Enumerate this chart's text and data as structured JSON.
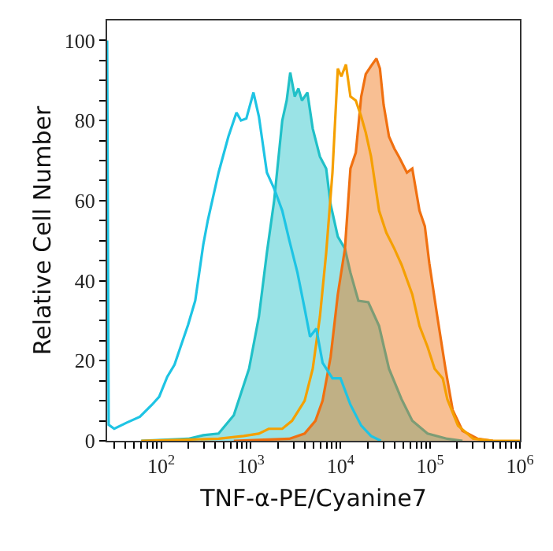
{
  "chart_data": {
    "type": "line",
    "xlabel": "TNF-α-PE/Cyanine7",
    "ylabel": "Relative Cell Number",
    "log": "x",
    "marker": "none",
    "line_style": "solid",
    "xlim": [
      25,
      1000000
    ],
    "ylim": [
      0,
      105
    ],
    "xticks": [
      {
        "value": 30,
        "label": null
      },
      {
        "value": 40,
        "label": null
      },
      {
        "value": 50,
        "label": null
      },
      {
        "value": 60,
        "label": null
      },
      {
        "value": 70,
        "label": null
      },
      {
        "value": 80,
        "label": null
      },
      {
        "value": 90,
        "label": null
      },
      {
        "value": 100,
        "label": "10$^{2}$"
      },
      {
        "value": 200,
        "label": null
      },
      {
        "value": 300,
        "label": null
      },
      {
        "value": 400,
        "label": null
      },
      {
        "value": 500,
        "label": null
      },
      {
        "value": 600,
        "label": null
      },
      {
        "value": 700,
        "label": null
      },
      {
        "value": 800,
        "label": null
      },
      {
        "value": 900,
        "label": null
      },
      {
        "value": 1000,
        "label": "10$^{3}$"
      },
      {
        "value": 2000,
        "label": null
      },
      {
        "value": 3000,
        "label": null
      },
      {
        "value": 4000,
        "label": null
      },
      {
        "value": 5000,
        "label": null
      },
      {
        "value": 6000,
        "label": null
      },
      {
        "value": 7000,
        "label": null
      },
      {
        "value": 8000,
        "label": null
      },
      {
        "value": 9000,
        "label": null
      },
      {
        "value": 10000,
        "label": "10$^{4}$"
      },
      {
        "value": 20000,
        "label": null
      },
      {
        "value": 30000,
        "label": null
      },
      {
        "value": 40000,
        "label": null
      },
      {
        "value": 50000,
        "label": null
      },
      {
        "value": 60000,
        "label": null
      },
      {
        "value": 70000,
        "label": null
      },
      {
        "value": 80000,
        "label": null
      },
      {
        "value": 90000,
        "label": null
      },
      {
        "value": 100000,
        "label": "10$^{5}$"
      },
      {
        "value": 200000,
        "label": null
      },
      {
        "value": 300000,
        "label": null
      },
      {
        "value": 400000,
        "label": null
      },
      {
        "value": 500000,
        "label": null
      },
      {
        "value": 600000,
        "label": null
      },
      {
        "value": 700000,
        "label": null
      },
      {
        "value": 800000,
        "label": null
      },
      {
        "value": 900000,
        "label": null
      },
      {
        "value": 1000000,
        "label": "10$^{6}$"
      }
    ],
    "yticks": [
      0,
      {
        "value": 5,
        "label": null
      },
      {
        "value": 10,
        "label": null
      },
      {
        "value": 15,
        "label": null
      },
      20,
      {
        "value": 25,
        "label": null
      },
      {
        "value": 30,
        "label": null
      },
      {
        "value": 35,
        "label": null
      },
      40,
      {
        "value": 45,
        "label": null
      },
      {
        "value": 50,
        "label": null
      },
      {
        "value": 55,
        "label": null
      },
      60,
      {
        "value": 65,
        "label": null
      },
      {
        "value": 70,
        "label": null
      },
      {
        "value": 75,
        "label": null
      },
      80,
      {
        "value": 85,
        "label": null
      },
      {
        "value": 90,
        "label": null
      },
      {
        "value": 95,
        "label": null
      },
      100
    ],
    "series": [
      {
        "color": "#1ec4e4",
        "x": [
          25,
          26,
          30,
          41,
          58,
          79,
          95,
          117,
          141,
          162,
          200,
          240,
          295,
          331,
          437,
          562,
          692,
          776,
          891,
          1070,
          1230,
          1510,
          1820,
          2240,
          2690,
          3310,
          3980,
          4570,
          5370,
          6310,
          8130,
          10000,
          12900,
          17000,
          21900,
          28200
        ],
        "values": [
          100,
          4,
          3,
          4.5,
          6,
          9,
          11,
          16,
          19,
          23,
          29,
          35,
          49,
          55,
          67,
          76,
          82,
          80,
          80.5,
          87,
          81,
          67,
          63,
          57.5,
          50,
          42,
          33,
          26,
          28,
          19.5,
          15.6,
          15.6,
          9,
          3.8,
          1.2,
          0
        ]
      },
      {
        "type": "area",
        "color": "#20c0c8",
        "x": [
          60,
          200,
          295,
          437,
          646,
          955,
          1230,
          1510,
          1820,
          2240,
          2510,
          2750,
          3090,
          3390,
          3720,
          4270,
          4900,
          5890,
          6920,
          7760,
          9330,
          11200,
          12900,
          15800,
          20400,
          26900,
          34700,
          47900,
          63100,
          93300,
          155000,
          229000
        ],
        "values": [
          0,
          0.5,
          1.4,
          1.8,
          6.4,
          18,
          31,
          47,
          60,
          80,
          85,
          92,
          86,
          88,
          85,
          87,
          78,
          71,
          68,
          59,
          51,
          48,
          42,
          35,
          34.6,
          28.7,
          18,
          10.4,
          5,
          1.8,
          0.5,
          0
        ]
      },
      {
        "color": "#f5a000",
        "x": [
          60,
          437,
          832,
          1230,
          1580,
          2240,
          2880,
          3980,
          4900,
          5890,
          6920,
          8130,
          9330,
          10200,
          11500,
          12900,
          14800,
          17000,
          19100,
          21900,
          26900,
          32400,
          39800,
          47900,
          63100,
          75900,
          93300,
          112000,
          138000,
          155000,
          204000,
          302000,
          501000,
          1000000
        ],
        "values": [
          0,
          0.5,
          1.2,
          1.8,
          3,
          3,
          5,
          10,
          18,
          31,
          47,
          67,
          93,
          91,
          94,
          86,
          85,
          81,
          77,
          71,
          57.5,
          52,
          48,
          44,
          36.6,
          28.7,
          23.5,
          18,
          15.6,
          10.4,
          3.8,
          0.5,
          0,
          0
        ]
      },
      {
        "type": "area",
        "color": "#f07010",
        "x": [
          646,
          2690,
          3980,
          5250,
          6310,
          7760,
          9330,
          11200,
          12900,
          14800,
          17000,
          19100,
          21900,
          25100,
          27500,
          30200,
          34700,
          39800,
          44700,
          55000,
          63100,
          75900,
          87100,
          97700,
          120000,
          148000,
          178000,
          229000,
          339000,
          501000
        ],
        "values": [
          0,
          0.5,
          1.8,
          5,
          10,
          21,
          36.6,
          48,
          68,
          72,
          86,
          91.6,
          93.6,
          95.5,
          93,
          84,
          76,
          73,
          71,
          67,
          68,
          57.5,
          53.6,
          44.4,
          31,
          18,
          7.7,
          2.5,
          0.5,
          0
        ]
      }
    ]
  }
}
